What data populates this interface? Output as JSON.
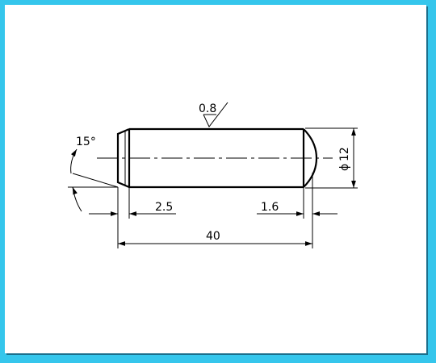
{
  "colors": {
    "frame": "#35c6ec",
    "paper": "#ffffff",
    "ink": "#000000"
  },
  "drawing": {
    "surface_roughness": "0.8",
    "chamfer_angle": "15°",
    "diameter": "12",
    "diameter_symbol": "ϕ",
    "chamfer_length": "2.5",
    "end_radius_length": "1.6",
    "overall_length": "40"
  }
}
